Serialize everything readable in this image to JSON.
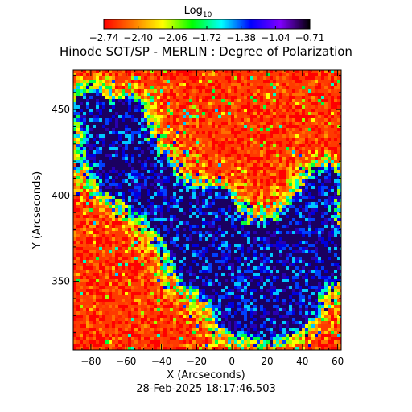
{
  "chart_data": {
    "type": "heatmap",
    "title": "Hinode SOT/SP - MERLIN : Degree of Polarization",
    "xlabel": "X (Arcseconds)",
    "ylabel": "Y (Arcseconds)",
    "timestamp": "28-Feb-2025 18:17:46.503",
    "colorbar": {
      "label_main": "Log",
      "label_sub": "10",
      "tick_labels": [
        "−2.74",
        "−2.40",
        "−2.06",
        "−1.72",
        "−1.38",
        "−1.04",
        "−0.71"
      ],
      "range": [
        -2.74,
        -0.71
      ],
      "colormap": [
        "#ff0000",
        "#ff7a00",
        "#ffff00",
        "#00ff00",
        "#00ffff",
        "#0000ff",
        "#8000ff",
        "#000000"
      ]
    },
    "xlim": [
      -90,
      62
    ],
    "ylim": [
      310,
      473
    ],
    "x_ticks": [
      -80,
      -60,
      -40,
      -20,
      0,
      20,
      40,
      60
    ],
    "x_tick_labels": [
      "−80",
      "−60",
      "−40",
      "−20",
      "0",
      "20",
      "40",
      "60"
    ],
    "y_ticks": [
      350,
      400,
      450
    ],
    "y_tick_labels": [
      "350",
      "400",
      "450"
    ]
  }
}
